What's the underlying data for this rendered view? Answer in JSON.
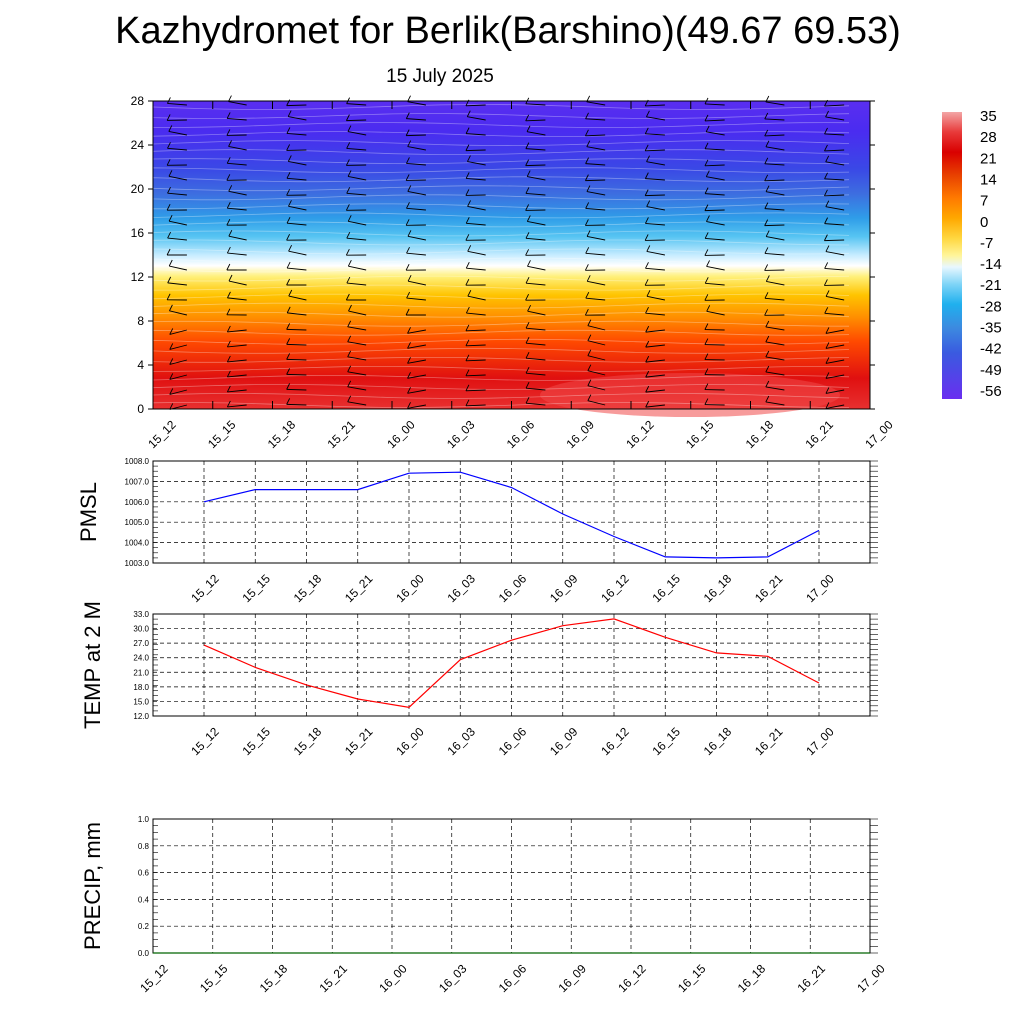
{
  "title": "Kazhydromet for Berlik(Barshino)(49.67 69.53)",
  "subtitle": "15 July 2025",
  "colors": {
    "pmsl_line": "#0000ff",
    "temp_line": "#ff0000",
    "precip_line": "#006400"
  },
  "chart_data": [
    {
      "type": "heatmap",
      "title": "",
      "description_layers": "temperature shaded contours with wind barbs",
      "x_ticks": [
        "15_12",
        "15_15",
        "15_18",
        "15_21",
        "16_00",
        "16_03",
        "16_06",
        "16_09",
        "16_12",
        "16_15",
        "16_18",
        "16_21",
        "17_00"
      ],
      "y_ticks": [
        0,
        4,
        8,
        12,
        16,
        20,
        24,
        28
      ],
      "ylim": [
        0,
        28
      ],
      "colorbar": {
        "labels": [
          "35",
          "28",
          "21",
          "14",
          "7",
          "0",
          "-7",
          "-14",
          "-21",
          "-28",
          "-35",
          "-42",
          "-49",
          "-56"
        ],
        "colors": [
          "#f3a6a6",
          "#e83a3a",
          "#d90000",
          "#e84100",
          "#ff7a00",
          "#ffa800",
          "#ffd740",
          "#fff59a",
          "#e8f7ff",
          "#7fd4f7",
          "#1fb0ee",
          "#3c8be0",
          "#3a5ae0",
          "#6a2ef0"
        ]
      }
    },
    {
      "type": "line",
      "ylabel": "PMSL",
      "x": [
        "15_12",
        "15_15",
        "15_18",
        "15_21",
        "16_00",
        "16_03",
        "16_06",
        "16_09",
        "16_12",
        "16_15",
        "16_18",
        "16_21",
        "17_00"
      ],
      "values": [
        1006.0,
        1006.6,
        1006.6,
        1006.6,
        1007.4,
        1007.45,
        1006.7,
        1005.4,
        1004.3,
        1003.3,
        1003.25,
        1003.3,
        1004.6
      ],
      "ylim": [
        1003.0,
        1008.0
      ],
      "y_ticks": [
        "1003.0",
        "1004.0",
        "1005.0",
        "1006.0",
        "1007.0",
        "1008.0"
      ],
      "grid": true
    },
    {
      "type": "line",
      "ylabel": "TEMP at 2 M",
      "x": [
        "15_12",
        "15_15",
        "15_18",
        "15_21",
        "16_00",
        "16_03",
        "16_06",
        "16_09",
        "16_12",
        "16_15",
        "16_18",
        "16_21",
        "17_00"
      ],
      "values": [
        26.6,
        22.0,
        18.4,
        15.5,
        13.8,
        23.6,
        27.6,
        30.6,
        32.0,
        28.2,
        25.0,
        24.3,
        18.8
      ],
      "ylim": [
        12.0,
        33.0
      ],
      "y_ticks": [
        "12.0",
        "15.0",
        "18.0",
        "21.0",
        "24.0",
        "27.0",
        "30.0",
        "33.0"
      ],
      "grid": true
    },
    {
      "type": "line",
      "ylabel": "PRECIP, mm",
      "x": [
        "15_12",
        "15_15",
        "15_18",
        "15_21",
        "16_00",
        "16_03",
        "16_06",
        "16_09",
        "16_12",
        "16_15",
        "16_18",
        "16_21",
        "17_00"
      ],
      "values": [
        0,
        0,
        0,
        0,
        0,
        0,
        0,
        0,
        0,
        0,
        0,
        0,
        0
      ],
      "ylim": [
        0.0,
        1.0
      ],
      "y_ticks": [
        "0.0",
        "0.2",
        "0.4",
        "0.6",
        "0.8",
        "1.0"
      ],
      "grid": true
    }
  ]
}
